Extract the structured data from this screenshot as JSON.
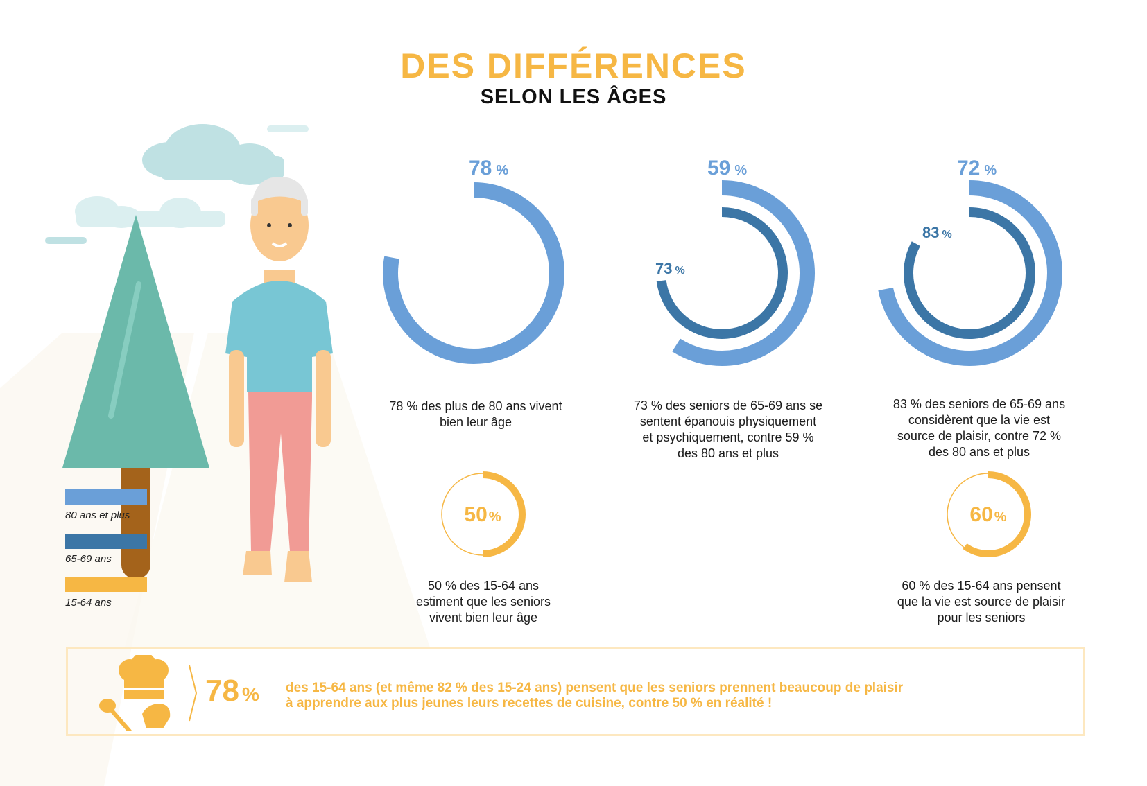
{
  "title": {
    "main": "DES DIFFÉRENCES",
    "sub": "SELON LES ÂGES"
  },
  "colors": {
    "age80": "#6a9fd8",
    "age6569": "#3c76a6",
    "age1564": "#f6b744",
    "bg_accent": "#fde8c0"
  },
  "legend": [
    {
      "label": "80 ans et plus",
      "color": "#6a9fd8"
    },
    {
      "label": "65-69 ans",
      "color": "#3c76a6"
    },
    {
      "label": "15-64 ans",
      "color": "#f6b744"
    }
  ],
  "chart_data": [
    {
      "type": "donut",
      "title": "78% des plus de 80 ans vivent bien leur âge",
      "series": [
        {
          "name": "80 ans et plus",
          "value": 78
        }
      ]
    },
    {
      "type": "donut",
      "title": "73% des seniors de 65-69 ans se sentent épanouis physiquement et psychiquement, contre 59% des 80 ans et plus",
      "series": [
        {
          "name": "80 ans et plus",
          "value": 59
        },
        {
          "name": "65-69 ans",
          "value": 73
        }
      ]
    },
    {
      "type": "donut",
      "title": "83% des seniors de 65-69 ans considèrent que la vie est source de plaisir, contre 72% des 80 ans et plus",
      "series": [
        {
          "name": "80 ans et plus",
          "value": 72
        },
        {
          "name": "65-69 ans",
          "value": 83
        }
      ]
    },
    {
      "type": "donut",
      "title": "50% des 15-64 ans estiment que les seniors vivent bien leur âge",
      "series": [
        {
          "name": "15-64 ans",
          "value": 50
        }
      ]
    },
    {
      "type": "donut",
      "title": "60% des 15-64 ans pensent que la vie est source de plaisir pour les seniors",
      "series": [
        {
          "name": "15-64 ans",
          "value": 60
        }
      ]
    }
  ],
  "labels": {
    "d1_outer": "78",
    "d2_outer": "59",
    "d2_inner": "73",
    "d3_outer": "72",
    "d3_inner": "83",
    "d4": "50",
    "d5": "60",
    "pct": "%"
  },
  "captions": {
    "d1": [
      "78 % des plus de 80 ans vivent",
      "bien leur âge"
    ],
    "d2": [
      "73 % des seniors de 65-69 ans se",
      "sentent épanouis physiquement",
      "et psychiquement, contre 59 %",
      "des 80 ans et plus"
    ],
    "d3": [
      "83 % des seniors de 65-69 ans",
      "considèrent que la vie est",
      "source de plaisir, contre 72 %",
      "des 80 ans et plus"
    ],
    "d4": [
      "50 % des 15-64 ans",
      "estiment que les seniors",
      "vivent bien leur âge"
    ],
    "d5": [
      "60 % des 15-64 ans pensent",
      "que la vie est source de plaisir",
      "pour les seniors"
    ]
  },
  "bottom": {
    "value": "78",
    "pct": "%",
    "line1": "des 15-64 ans (et même 82 % des 15-24 ans) pensent que les seniors prennent beaucoup de plaisir",
    "line2": "à apprendre aux plus jeunes leurs recettes de cuisine, contre 50 % en réalité !"
  }
}
